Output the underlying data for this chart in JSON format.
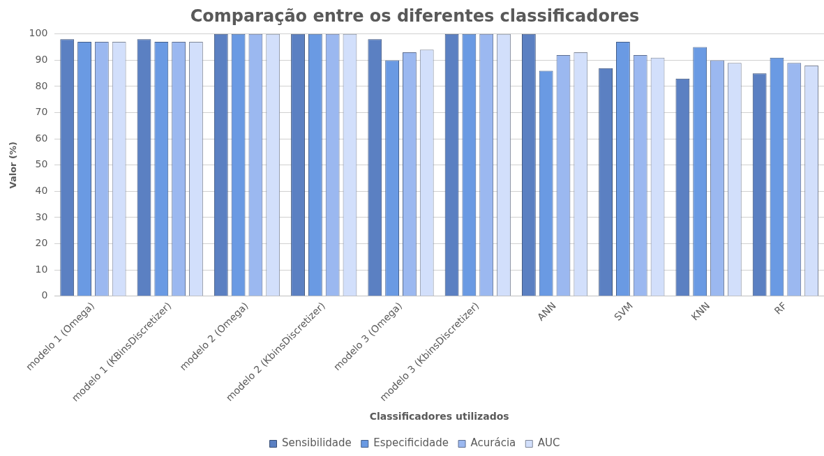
{
  "chart_data": {
    "type": "bar",
    "title": "Comparação entre os diferentes classificadores",
    "xlabel": "Classificadores utilizados",
    "ylabel": "Valor (%)",
    "categories": [
      "modelo 1 (Omega)",
      "modelo 1 (KBinsDiscretizer)",
      "modelo 2 (Omega)",
      "modelo 2 (KbinsDiscretizer)",
      "modelo 3 (Omega)",
      "modelo 3 (KbinsDiscretizer)",
      "ANN",
      "SVM",
      "KNN",
      "RF"
    ],
    "series": [
      {
        "name": "Sensibilidade",
        "color": "#5b80c2",
        "values": [
          98,
          98,
          100,
          100,
          98,
          100,
          100,
          87,
          83,
          85
        ]
      },
      {
        "name": "Especificidade",
        "color": "#6a9ae3",
        "values": [
          97,
          97,
          100,
          100,
          90,
          100,
          86,
          97,
          95,
          91
        ]
      },
      {
        "name": "Acurácia",
        "color": "#9bb8f0",
        "values": [
          97,
          97,
          100,
          100,
          93,
          100,
          92,
          92,
          90,
          89
        ]
      },
      {
        "name": "AUC",
        "color": "#d2dffb",
        "values": [
          97,
          97,
          100,
          100,
          94,
          100,
          93,
          91,
          89,
          88
        ]
      }
    ],
    "ylim": [
      0,
      100
    ],
    "yticks": [
      0,
      10,
      20,
      30,
      40,
      50,
      60,
      70,
      80,
      90,
      100
    ],
    "grid": "y",
    "legend": "bottom"
  }
}
